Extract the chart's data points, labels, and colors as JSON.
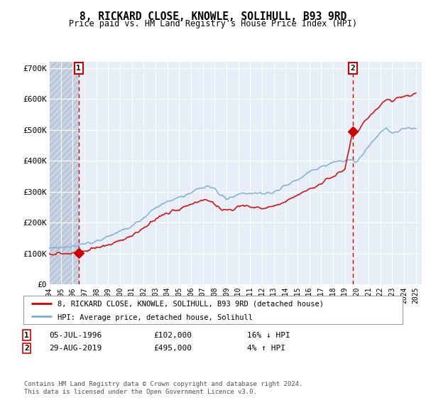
{
  "title": "8, RICKARD CLOSE, KNOWLE, SOLIHULL, B93 9RD",
  "subtitle": "Price paid vs. HM Land Registry's House Price Index (HPI)",
  "xlim": [
    1994.0,
    2025.5
  ],
  "ylim": [
    0,
    720000
  ],
  "yticks": [
    0,
    100000,
    200000,
    300000,
    400000,
    500000,
    600000,
    700000
  ],
  "ytick_labels": [
    "£0",
    "£100K",
    "£200K",
    "£300K",
    "£400K",
    "£500K",
    "£600K",
    "£700K"
  ],
  "xticks": [
    1994,
    1995,
    1996,
    1997,
    1998,
    1999,
    2000,
    2001,
    2002,
    2003,
    2004,
    2005,
    2006,
    2007,
    2008,
    2009,
    2010,
    2011,
    2012,
    2013,
    2014,
    2015,
    2016,
    2017,
    2018,
    2019,
    2020,
    2021,
    2022,
    2023,
    2024,
    2025
  ],
  "sale1_x": 1996.5,
  "sale1_y": 102000,
  "sale1_label": "1",
  "sale1_date": "05-JUL-1996",
  "sale1_price": "£102,000",
  "sale1_hpi": "16% ↓ HPI",
  "sale2_x": 2019.66,
  "sale2_y": 495000,
  "sale2_label": "2",
  "sale2_date": "29-AUG-2019",
  "sale2_price": "£495,000",
  "sale2_hpi": "4% ↑ HPI",
  "legend_line1": "8, RICKARD CLOSE, KNOWLE, SOLIHULL, B93 9RD (detached house)",
  "legend_line2": "HPI: Average price, detached house, Solihull",
  "footer": "Contains HM Land Registry data © Crown copyright and database right 2024.\nThis data is licensed under the Open Government Licence v3.0.",
  "bg_color": "#e8eef8",
  "hatch_color": "#c8d4e4",
  "grid_color": "#ffffff",
  "red_line_color": "#cc0000",
  "blue_line_color": "#7ab0d4",
  "marker_color": "#cc0000",
  "dashed_color": "#cc0000"
}
